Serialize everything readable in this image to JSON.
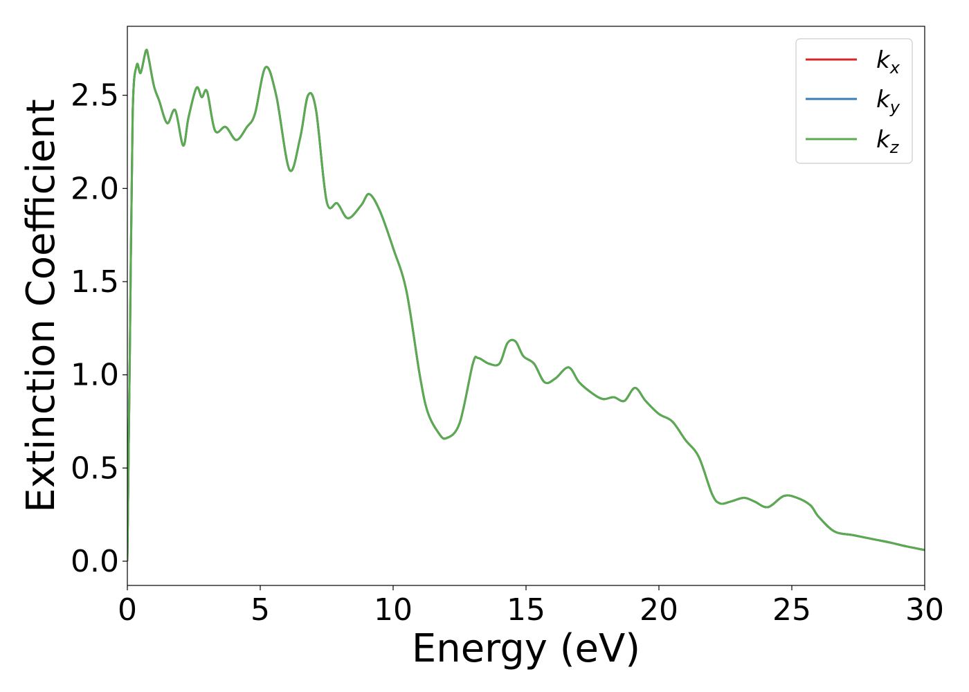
{
  "chart_data": {
    "type": "line",
    "xlabel": "Energy (eV)",
    "ylabel": "Extinction Coefficient",
    "xlim": [
      0,
      30
    ],
    "ylim": [
      -0.13,
      2.87
    ],
    "xticks": [
      "0",
      "5",
      "10",
      "15",
      "20",
      "25",
      "30"
    ],
    "yticks": [
      "0.0",
      "0.5",
      "1.0",
      "1.5",
      "2.0",
      "2.5"
    ],
    "grid": false,
    "legend_position": "top-right",
    "x": [
      0.0,
      0.1,
      0.2,
      0.35,
      0.5,
      0.7,
      0.8,
      1.0,
      1.2,
      1.5,
      1.8,
      2.1,
      2.3,
      2.6,
      2.8,
      3.0,
      3.3,
      3.7,
      4.1,
      4.5,
      4.8,
      5.2,
      5.6,
      6.1,
      6.5,
      6.8,
      7.1,
      7.5,
      7.9,
      8.3,
      8.8,
      9.1,
      9.5,
      10.0,
      10.5,
      11.0,
      11.3,
      11.7,
      12.0,
      12.5,
      13.0,
      13.2,
      13.6,
      14.0,
      14.3,
      14.6,
      14.9,
      15.3,
      15.7,
      16.1,
      16.6,
      17.0,
      17.5,
      17.9,
      18.3,
      18.7,
      19.1,
      19.5,
      20.0,
      20.5,
      21.0,
      21.5,
      22.0,
      22.3,
      22.7,
      23.2,
      23.6,
      24.1,
      24.7,
      25.2,
      25.7,
      26.0,
      26.6,
      27.3,
      28.0,
      28.7,
      29.3,
      30.0
    ],
    "series": [
      {
        "name": "k_x",
        "color": "#d62728",
        "values": [
          0.0,
          1.2,
          2.4,
          2.66,
          2.62,
          2.74,
          2.7,
          2.55,
          2.47,
          2.35,
          2.42,
          2.23,
          2.38,
          2.54,
          2.49,
          2.52,
          2.31,
          2.33,
          2.26,
          2.33,
          2.4,
          2.65,
          2.5,
          2.1,
          2.27,
          2.5,
          2.42,
          1.93,
          1.92,
          1.84,
          1.91,
          1.97,
          1.88,
          1.68,
          1.45,
          1.0,
          0.8,
          0.69,
          0.66,
          0.74,
          1.06,
          1.09,
          1.06,
          1.06,
          1.17,
          1.18,
          1.1,
          1.06,
          0.96,
          0.98,
          1.04,
          0.96,
          0.9,
          0.87,
          0.88,
          0.86,
          0.93,
          0.86,
          0.79,
          0.75,
          0.65,
          0.56,
          0.36,
          0.31,
          0.32,
          0.34,
          0.32,
          0.29,
          0.35,
          0.34,
          0.3,
          0.24,
          0.16,
          0.14,
          0.12,
          0.1,
          0.08,
          0.06
        ]
      },
      {
        "name": "k_y",
        "color": "#377eb8",
        "values": [
          0.0,
          1.2,
          2.4,
          2.66,
          2.62,
          2.74,
          2.7,
          2.55,
          2.47,
          2.35,
          2.42,
          2.23,
          2.38,
          2.54,
          2.49,
          2.52,
          2.31,
          2.33,
          2.26,
          2.33,
          2.4,
          2.65,
          2.5,
          2.1,
          2.27,
          2.5,
          2.42,
          1.93,
          1.92,
          1.84,
          1.91,
          1.97,
          1.88,
          1.68,
          1.45,
          1.0,
          0.8,
          0.69,
          0.66,
          0.74,
          1.06,
          1.09,
          1.06,
          1.06,
          1.17,
          1.18,
          1.1,
          1.06,
          0.96,
          0.98,
          1.04,
          0.96,
          0.9,
          0.87,
          0.88,
          0.86,
          0.93,
          0.86,
          0.79,
          0.75,
          0.65,
          0.56,
          0.36,
          0.31,
          0.32,
          0.34,
          0.32,
          0.29,
          0.35,
          0.34,
          0.3,
          0.24,
          0.16,
          0.14,
          0.12,
          0.1,
          0.08,
          0.06
        ]
      },
      {
        "name": "k_z",
        "color": "#5aab4f",
        "values": [
          0.0,
          1.2,
          2.4,
          2.66,
          2.62,
          2.74,
          2.7,
          2.55,
          2.47,
          2.35,
          2.42,
          2.23,
          2.38,
          2.54,
          2.49,
          2.52,
          2.31,
          2.33,
          2.26,
          2.33,
          2.4,
          2.65,
          2.5,
          2.1,
          2.27,
          2.5,
          2.42,
          1.93,
          1.92,
          1.84,
          1.91,
          1.97,
          1.88,
          1.68,
          1.45,
          1.0,
          0.8,
          0.69,
          0.66,
          0.74,
          1.06,
          1.09,
          1.06,
          1.06,
          1.17,
          1.18,
          1.1,
          1.06,
          0.96,
          0.98,
          1.04,
          0.96,
          0.9,
          0.87,
          0.88,
          0.86,
          0.93,
          0.86,
          0.79,
          0.75,
          0.65,
          0.56,
          0.36,
          0.31,
          0.32,
          0.34,
          0.32,
          0.29,
          0.35,
          0.34,
          0.3,
          0.24,
          0.16,
          0.14,
          0.12,
          0.1,
          0.08,
          0.06
        ]
      }
    ]
  }
}
